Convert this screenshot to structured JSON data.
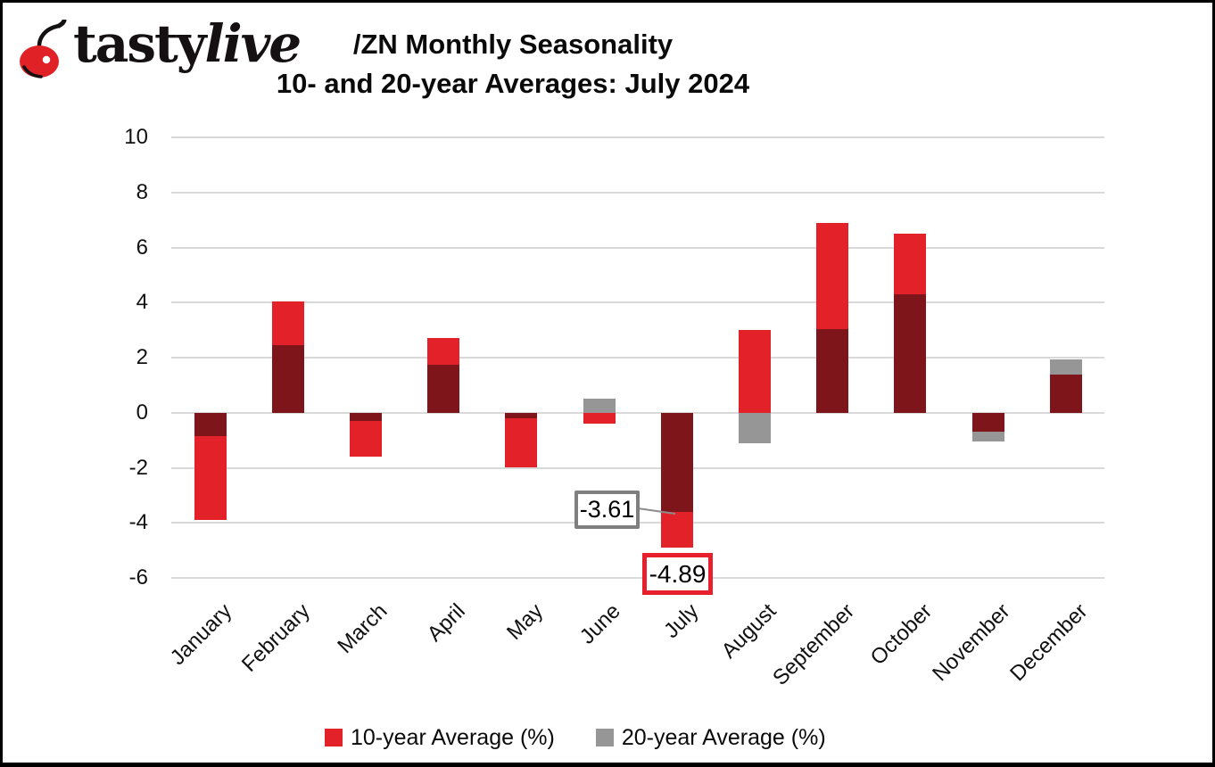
{
  "brand": {
    "name_regular": "tasty",
    "name_italic": "live",
    "cherry_color": "#E02227"
  },
  "title": {
    "line1": "/ZN Monthly Seasonality",
    "line2": "10- and 20-year Averages: July 2024"
  },
  "legend": {
    "items": [
      {
        "label": "10-year Average (%)",
        "color": "#E22128"
      },
      {
        "label": "20-year Average (%)",
        "color": "#969696"
      }
    ]
  },
  "annotations": [
    {
      "text": "-3.61",
      "month": "July",
      "series": "20-year Average (%)",
      "box_border_color": "#7F7F7F"
    },
    {
      "text": "-4.89",
      "month": "July",
      "series": "10-year Average (%)",
      "box_border_color": "#E8202B"
    }
  ],
  "chart_data": {
    "type": "bar",
    "title": "/ZN Monthly Seasonality",
    "subtitle": "10- and 20-year Averages: July 2024",
    "categories": [
      "January",
      "February",
      "March",
      "April",
      "May",
      "June",
      "July",
      "August",
      "September",
      "October",
      "November",
      "December"
    ],
    "series": [
      {
        "name": "10-year Average (%)",
        "color": "#E22128",
        "values": [
          -3.9,
          4.05,
          -1.6,
          2.7,
          -2.0,
          -0.4,
          -4.89,
          3.0,
          6.9,
          6.5,
          -0.7,
          1.4
        ]
      },
      {
        "name": "20-year Average (%)",
        "color": "#969696",
        "values": [
          -0.85,
          2.45,
          -0.3,
          1.75,
          -0.2,
          0.5,
          -3.61,
          -1.1,
          3.05,
          4.3,
          -1.05,
          1.95
        ]
      }
    ],
    "bar_mode": "overlapped",
    "overlap_color": "#7E151A",
    "ylabel": "",
    "xlabel": "",
    "ylim": [
      -6,
      10
    ],
    "ytick_step": 2,
    "grid": true,
    "gridline_color": "#D9D9D9",
    "legend_position": "bottom"
  }
}
